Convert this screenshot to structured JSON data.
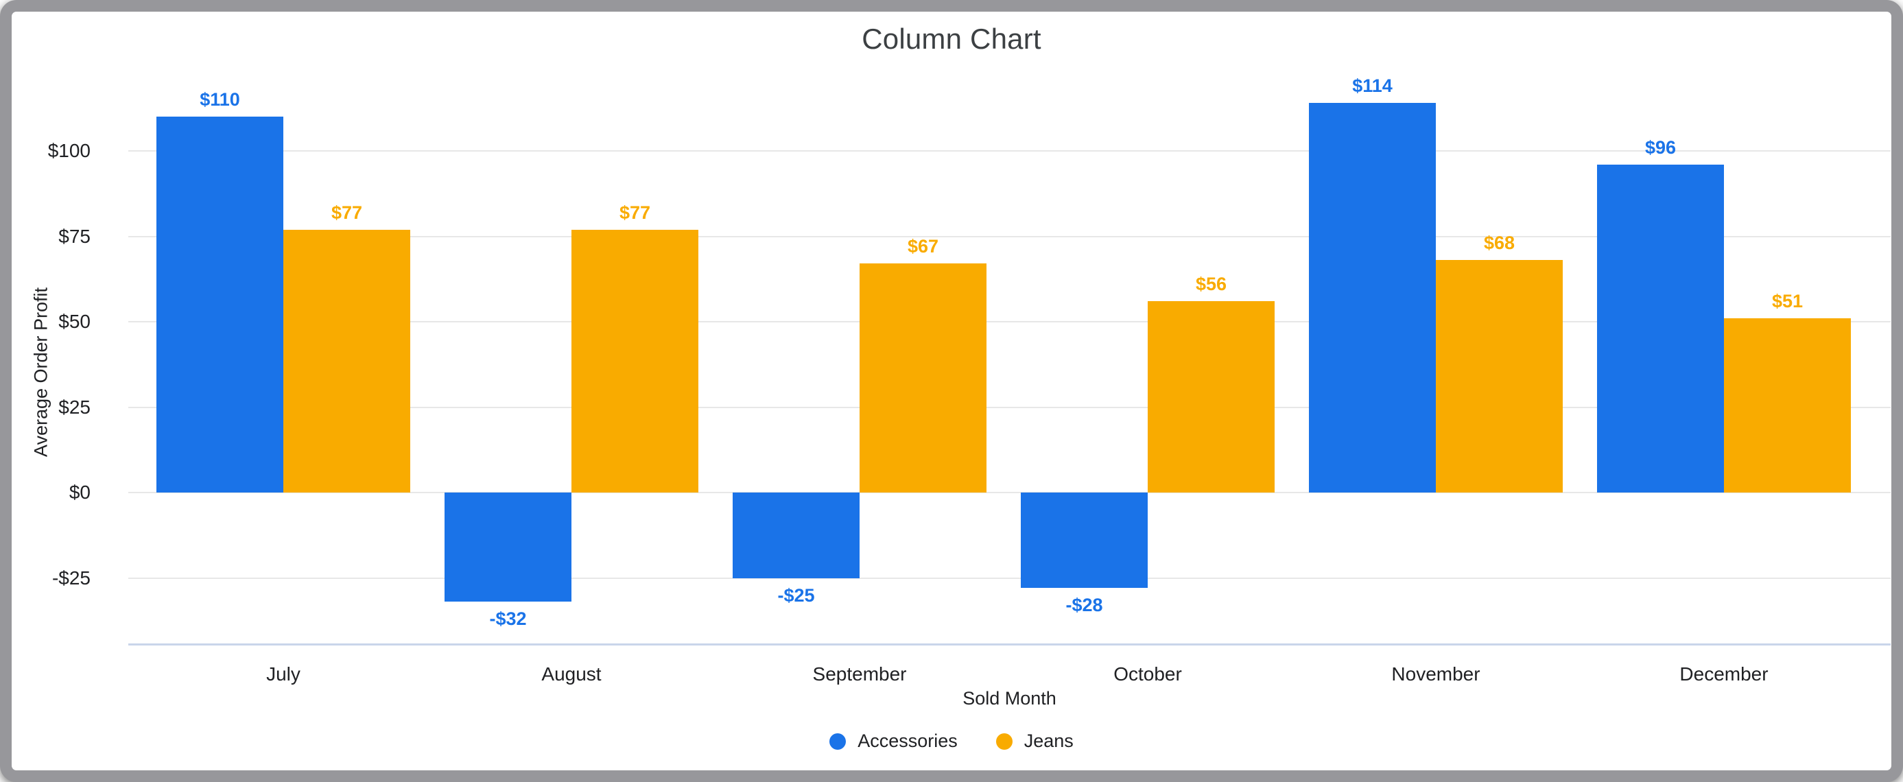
{
  "chart_data": {
    "type": "bar",
    "title": "Column Chart",
    "xlabel": "Sold Month",
    "ylabel": "Average Order Profit",
    "categories": [
      "July",
      "August",
      "September",
      "October",
      "November",
      "December"
    ],
    "series": [
      {
        "name": "Accessories",
        "color": "#1A73E8",
        "values": [
          110,
          -32,
          -25,
          -28,
          114,
          96
        ],
        "labels": [
          "$110",
          "-$32",
          "-$25",
          "-$28",
          "$114",
          "$96"
        ]
      },
      {
        "name": "Jeans",
        "color": "#F9AB00",
        "values": [
          77,
          77,
          67,
          56,
          68,
          51
        ],
        "labels": [
          "$77",
          "$77",
          "$67",
          "$56",
          "$68",
          "$51"
        ]
      }
    ],
    "y_ticks": [
      {
        "value": 100,
        "label": "$100"
      },
      {
        "value": 75,
        "label": "$75"
      },
      {
        "value": 50,
        "label": "$50"
      },
      {
        "value": 25,
        "label": "$25"
      },
      {
        "value": 0,
        "label": "$0"
      },
      {
        "value": -25,
        "label": "-$25"
      }
    ],
    "ylim": [
      -45,
      116
    ],
    "grid": true,
    "legend_position": "bottom"
  },
  "colors": {
    "gridline": "#e7e7e7",
    "axis_baseline": "#c9d5ea",
    "frame": "#97979b",
    "title_text": "#3c4043",
    "label_text": "#202124"
  }
}
